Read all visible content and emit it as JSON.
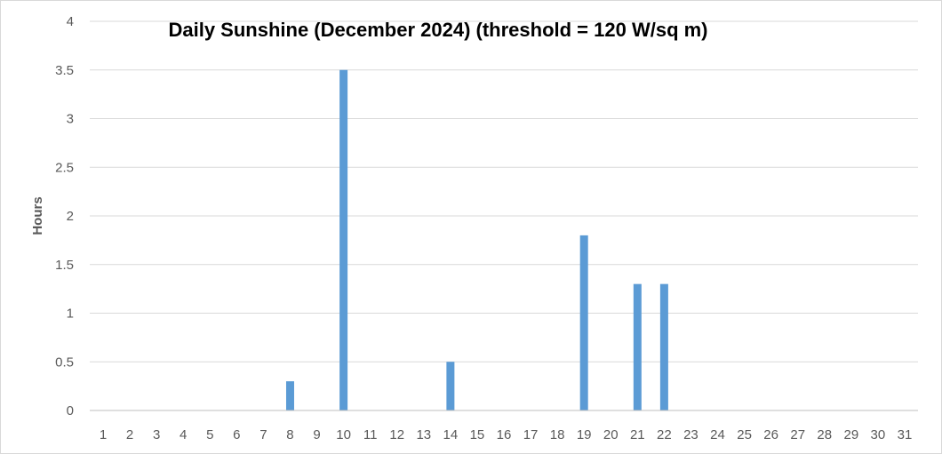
{
  "chart_data": {
    "type": "bar",
    "title": "Daily Sunshine (December 2024) (threshold = 120 W/sq m)",
    "xlabel": "",
    "ylabel": "Hours",
    "ylim": [
      0,
      4
    ],
    "yticks": [
      "0",
      "0.5",
      "1",
      "1.5",
      "2",
      "2.5",
      "3",
      "3.5",
      "4"
    ],
    "categories": [
      "1",
      "2",
      "3",
      "4",
      "5",
      "6",
      "7",
      "8",
      "9",
      "10",
      "11",
      "12",
      "13",
      "14",
      "15",
      "16",
      "17",
      "18",
      "19",
      "20",
      "21",
      "22",
      "23",
      "24",
      "25",
      "26",
      "27",
      "28",
      "29",
      "30",
      "31"
    ],
    "values": [
      0,
      0,
      0,
      0,
      0,
      0,
      0,
      0.3,
      0,
      3.5,
      0,
      0,
      0,
      0.5,
      0,
      0,
      0,
      0,
      1.8,
      0,
      1.3,
      1.3,
      0,
      0,
      0,
      0,
      0,
      0,
      0,
      0,
      0
    ],
    "grid": true,
    "legend": "none",
    "colors": {
      "bar": "#5b9bd5",
      "grid": "#d9d9d9",
      "axis": "#bfbfbf"
    }
  }
}
